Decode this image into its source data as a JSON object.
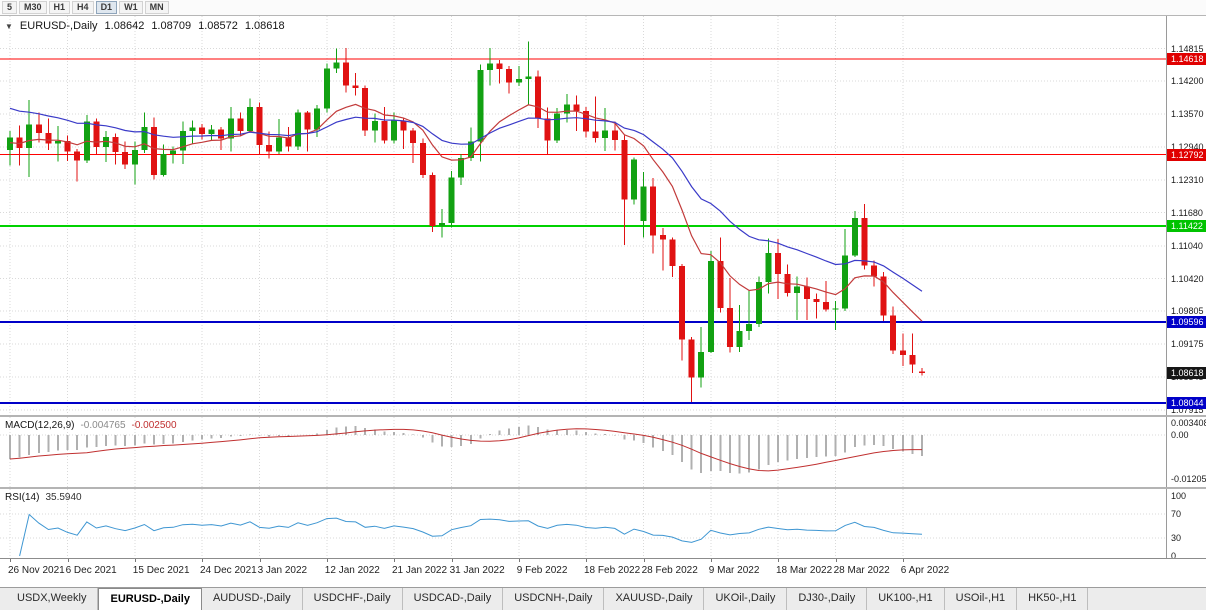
{
  "toolbar": {
    "timeframes": [
      {
        "label": "5",
        "active": false
      },
      {
        "label": "M30",
        "active": false
      },
      {
        "label": "H1",
        "active": false
      },
      {
        "label": "H4",
        "active": false
      },
      {
        "label": "D1",
        "active": true
      },
      {
        "label": "W1",
        "active": false
      },
      {
        "label": "MN",
        "active": false
      }
    ]
  },
  "chart": {
    "header": {
      "expander": "▼",
      "symbol": "EURUSD-,Daily",
      "open": "1.08642",
      "high": "1.08709",
      "low": "1.08572",
      "close": "1.08618"
    },
    "price_axis": {
      "ticks": [
        {
          "label": "1.14815",
          "price": 1.14815
        },
        {
          "label": "1.14200",
          "price": 1.142
        },
        {
          "label": "1.13570",
          "price": 1.1357
        },
        {
          "label": "1.12940",
          "price": 1.1294
        },
        {
          "label": "1.12310",
          "price": 1.1231
        },
        {
          "label": "1.11680",
          "price": 1.1168
        },
        {
          "label": "1.11040",
          "price": 1.1104
        },
        {
          "label": "1.10420",
          "price": 1.1042
        },
        {
          "label": "1.09805",
          "price": 1.09805
        },
        {
          "label": "1.09175",
          "price": 1.09175
        },
        {
          "label": "1.08545",
          "price": 1.08545
        },
        {
          "label": "1.07915",
          "price": 1.07915
        }
      ],
      "badges": [
        {
          "label": "1.14618",
          "price": 1.14618,
          "color": "#e00000",
          "name": "level-1-14618"
        },
        {
          "label": "1.12792",
          "price": 1.12792,
          "color": "#e00000",
          "name": "level-1-12792"
        },
        {
          "label": "1.11422",
          "price": 1.11422,
          "color": "#00c300",
          "name": "level-1-11422"
        },
        {
          "label": "1.09596",
          "price": 1.09596,
          "color": "#0000c8",
          "name": "level-1-09596"
        },
        {
          "label": "1.08618",
          "price": 1.08618,
          "color": "#161616",
          "name": "current-price"
        },
        {
          "label": "1.08044",
          "price": 1.08044,
          "color": "#0000c8",
          "name": "level-1-08044"
        }
      ]
    }
  },
  "macd": {
    "title": "MACD(12,26,9)",
    "value_main": "-0.004765",
    "value_signal": "-0.002500"
  },
  "rsi": {
    "title": "RSI(14)",
    "value": "35.5940"
  },
  "date_axis": {
    "labels": [
      {
        "text": "26 Nov 2021",
        "index": 0
      },
      {
        "text": "6 Dec 2021",
        "index": 6
      },
      {
        "text": "15 Dec 2021",
        "index": 13
      },
      {
        "text": "24 Dec 2021",
        "index": 20
      },
      {
        "text": "3 Jan 2022",
        "index": 26
      },
      {
        "text": "12 Jan 2022",
        "index": 33
      },
      {
        "text": "21 Jan 2022",
        "index": 40
      },
      {
        "text": "31 Jan 2022",
        "index": 46
      },
      {
        "text": "9 Feb 2022",
        "index": 53
      },
      {
        "text": "18 Feb 2022",
        "index": 60
      },
      {
        "text": "28 Feb 2022",
        "index": 66
      },
      {
        "text": "9 Mar 2022",
        "index": 73
      },
      {
        "text": "18 Mar 2022",
        "index": 80
      },
      {
        "text": "28 Mar 2022",
        "index": 86
      },
      {
        "text": "6 Apr 2022",
        "index": 93
      }
    ]
  },
  "tabs": [
    {
      "label": "USDX,Weekly",
      "active": false
    },
    {
      "label": "EURUSD-,Daily",
      "active": true
    },
    {
      "label": "AUDUSD-,Daily",
      "active": false
    },
    {
      "label": "USDCHF-,Daily",
      "active": false
    },
    {
      "label": "USDCAD-,Daily",
      "active": false
    },
    {
      "label": "USDCNH-,Daily",
      "active": false
    },
    {
      "label": "XAUUSD-,Daily",
      "active": false
    },
    {
      "label": "UKOil-,Daily",
      "active": false
    },
    {
      "label": "DJ30-,Daily",
      "active": false
    },
    {
      "label": "UK100-,H1",
      "active": false
    },
    {
      "label": "USOil-,H1",
      "active": false
    },
    {
      "label": "HK50-,H1",
      "active": false
    }
  ],
  "chart_data": {
    "type": "candlestick",
    "symbol": "EURUSD-",
    "timeframe": "Daily",
    "current_ohlc": {
      "open": 1.08642,
      "high": 1.08709,
      "low": 1.08572,
      "close": 1.08618
    },
    "y_axis": {
      "min": 1.077,
      "max": 1.15
    },
    "colors": {
      "up": "#12a112",
      "down": "#e01212"
    },
    "hlines": [
      {
        "price": 1.14618,
        "color": "#ff0000",
        "width": 1
      },
      {
        "price": 1.12792,
        "color": "#ff0000",
        "width": 1
      },
      {
        "price": 1.11422,
        "color": "#00d200",
        "width": 2
      },
      {
        "price": 1.09596,
        "color": "#0000c8",
        "width": 2
      },
      {
        "price": 1.08044,
        "color": "#0000c8",
        "width": 2
      }
    ],
    "overlays": [
      {
        "name": "ma-fast",
        "type": "ema",
        "period": 12,
        "color": "#c23b3b",
        "seed": 1.13
      },
      {
        "name": "ma-slow",
        "type": "ema",
        "period": 26,
        "color": "#3a3ac8",
        "seed": 1.1372
      }
    ],
    "macd": {
      "fast": 12,
      "slow": 26,
      "signal": 9,
      "hist_color": "#b0b0b0",
      "signal_color": "#c03030",
      "current_main": -0.004765,
      "current_signal": -0.0025,
      "axis": [
        {
          "label": "0.003408",
          "value": 0.003408
        },
        {
          "label": "0.00",
          "value": 0
        },
        {
          "label": "-0.01205",
          "value": -0.01205
        }
      ]
    },
    "rsi": {
      "period": 14,
      "color": "#3e96d2",
      "levels": [
        70,
        30
      ],
      "current": 35.594,
      "axis": [
        {
          "label": "100",
          "value": 100
        },
        {
          "label": "70",
          "value": 70
        },
        {
          "label": "30",
          "value": 30
        },
        {
          "label": "0",
          "value": 0
        }
      ]
    },
    "candles": [
      [
        "2021.11.26",
        1.1288,
        1.1324,
        1.1258,
        1.1312
      ],
      [
        "2021.11.29",
        1.1312,
        1.1335,
        1.1258,
        1.1292
      ],
      [
        "2021.11.30",
        1.1292,
        1.1383,
        1.1236,
        1.1337
      ],
      [
        "2021.12.01",
        1.1337,
        1.136,
        1.1302,
        1.132
      ],
      [
        "2021.12.02",
        1.132,
        1.1348,
        1.1288,
        1.13
      ],
      [
        "2021.12.03",
        1.13,
        1.1334,
        1.1266,
        1.1305
      ],
      [
        "2021.12.06",
        1.1305,
        1.1316,
        1.1267,
        1.1285
      ],
      [
        "2021.12.07",
        1.1285,
        1.129,
        1.1228,
        1.1268
      ],
      [
        "2021.12.08",
        1.1268,
        1.1355,
        1.1263,
        1.1342
      ],
      [
        "2021.12.09",
        1.1342,
        1.1348,
        1.128,
        1.1294
      ],
      [
        "2021.12.10",
        1.1294,
        1.1324,
        1.1265,
        1.1313
      ],
      [
        "2021.12.13",
        1.1313,
        1.1319,
        1.126,
        1.1284
      ],
      [
        "2021.12.14",
        1.1284,
        1.1304,
        1.1252,
        1.126
      ],
      [
        "2021.12.15",
        1.126,
        1.1304,
        1.1222,
        1.1288
      ],
      [
        "2021.12.16",
        1.1288,
        1.136,
        1.1282,
        1.1332
      ],
      [
        "2021.12.17",
        1.1332,
        1.135,
        1.1232,
        1.124
      ],
      [
        "2021.12.20",
        1.124,
        1.1298,
        1.1237,
        1.128
      ],
      [
        "2021.12.21",
        1.128,
        1.1295,
        1.1262,
        1.1287
      ],
      [
        "2021.12.22",
        1.1287,
        1.1342,
        1.1261,
        1.1324
      ],
      [
        "2021.12.23",
        1.1324,
        1.1344,
        1.13,
        1.1331
      ],
      [
        "2021.12.24",
        1.1331,
        1.1338,
        1.1308,
        1.1318
      ],
      [
        "2021.12.27",
        1.1318,
        1.1336,
        1.1305,
        1.1327
      ],
      [
        "2021.12.28",
        1.1327,
        1.1332,
        1.1288,
        1.131
      ],
      [
        "2021.12.29",
        1.131,
        1.137,
        1.1285,
        1.1348
      ],
      [
        "2021.12.30",
        1.1348,
        1.136,
        1.1315,
        1.1324
      ],
      [
        "2021.12.31",
        1.1324,
        1.1386,
        1.1321,
        1.137
      ],
      [
        "2022.01.03",
        1.137,
        1.1379,
        1.1279,
        1.1297
      ],
      [
        "2022.01.04",
        1.1297,
        1.1323,
        1.1272,
        1.1285
      ],
      [
        "2022.01.05",
        1.1285,
        1.1347,
        1.128,
        1.1312
      ],
      [
        "2022.01.06",
        1.1312,
        1.1332,
        1.1285,
        1.1295
      ],
      [
        "2022.01.07",
        1.1295,
        1.1365,
        1.1288,
        1.136
      ],
      [
        "2022.01.10",
        1.136,
        1.1362,
        1.1285,
        1.1327
      ],
      [
        "2022.01.11",
        1.1327,
        1.1374,
        1.1313,
        1.1367
      ],
      [
        "2022.01.12",
        1.1367,
        1.1453,
        1.136,
        1.1444
      ],
      [
        "2022.01.13",
        1.1444,
        1.1482,
        1.1435,
        1.1455
      ],
      [
        "2022.01.14",
        1.1455,
        1.1483,
        1.1398,
        1.1411
      ],
      [
        "2022.01.17",
        1.1411,
        1.1435,
        1.1392,
        1.1406
      ],
      [
        "2022.01.18",
        1.1406,
        1.1411,
        1.1315,
        1.1325
      ],
      [
        "2022.01.19",
        1.1325,
        1.1358,
        1.1302,
        1.1343
      ],
      [
        "2022.01.20",
        1.1343,
        1.137,
        1.13,
        1.1306
      ],
      [
        "2022.01.21",
        1.1306,
        1.136,
        1.13,
        1.1344
      ],
      [
        "2022.01.24",
        1.1344,
        1.1349,
        1.129,
        1.1325
      ],
      [
        "2022.01.25",
        1.1325,
        1.133,
        1.1263,
        1.1301
      ],
      [
        "2022.01.26",
        1.1301,
        1.131,
        1.1234,
        1.124
      ],
      [
        "2022.01.27",
        1.124,
        1.1245,
        1.1131,
        1.1143
      ],
      [
        "2022.01.28",
        1.1143,
        1.1175,
        1.1121,
        1.1148
      ],
      [
        "2022.01.31",
        1.1148,
        1.1248,
        1.114,
        1.1235
      ],
      [
        "2022.02.01",
        1.1235,
        1.128,
        1.1221,
        1.1273
      ],
      [
        "2022.02.02",
        1.1273,
        1.1331,
        1.1267,
        1.1304
      ],
      [
        "2022.02.03",
        1.1304,
        1.1451,
        1.1266,
        1.1441
      ],
      [
        "2022.02.04",
        1.1441,
        1.1483,
        1.1411,
        1.1453
      ],
      [
        "2022.02.07",
        1.1453,
        1.146,
        1.1415,
        1.1443
      ],
      [
        "2022.02.08",
        1.1443,
        1.1448,
        1.1396,
        1.1417
      ],
      [
        "2022.02.09",
        1.1417,
        1.1448,
        1.141,
        1.1424
      ],
      [
        "2022.02.10",
        1.1424,
        1.1495,
        1.1374,
        1.1428
      ],
      [
        "2022.02.11",
        1.1428,
        1.144,
        1.133,
        1.1348
      ],
      [
        "2022.02.14",
        1.1348,
        1.1369,
        1.128,
        1.1306
      ],
      [
        "2022.02.15",
        1.1306,
        1.1368,
        1.1301,
        1.1358
      ],
      [
        "2022.02.16",
        1.1358,
        1.1395,
        1.134,
        1.1375
      ],
      [
        "2022.02.17",
        1.1375,
        1.1392,
        1.1324,
        1.1362
      ],
      [
        "2022.02.18",
        1.1362,
        1.137,
        1.1312,
        1.1323
      ],
      [
        "2022.02.21",
        1.1323,
        1.139,
        1.1302,
        1.1311
      ],
      [
        "2022.02.22",
        1.1311,
        1.1368,
        1.1286,
        1.1325
      ],
      [
        "2022.02.23",
        1.1325,
        1.1342,
        1.1287,
        1.1307
      ],
      [
        "2022.02.24",
        1.1307,
        1.1316,
        1.1106,
        1.1193
      ],
      [
        "2022.02.25",
        1.1193,
        1.1274,
        1.1184,
        1.127
      ],
      [
        "2022.02.28",
        1.1152,
        1.1246,
        1.1121,
        1.1218
      ],
      [
        "2022.03.01",
        1.1218,
        1.1234,
        1.109,
        1.1125
      ],
      [
        "2022.03.02",
        1.1125,
        1.1139,
        1.1058,
        1.1117
      ],
      [
        "2022.03.03",
        1.1117,
        1.1121,
        1.1045,
        1.1066
      ],
      [
        "2022.03.04",
        1.1066,
        1.107,
        1.0886,
        1.0926
      ],
      [
        "2022.03.07",
        1.0926,
        1.0931,
        1.0806,
        1.0853
      ],
      [
        "2022.03.08",
        1.0853,
        1.095,
        1.0834,
        1.0902
      ],
      [
        "2022.03.09",
        1.0902,
        1.1095,
        1.09,
        1.1076
      ],
      [
        "2022.03.10",
        1.1076,
        1.1121,
        1.0977,
        1.0986
      ],
      [
        "2022.03.11",
        1.0986,
        1.1043,
        1.0901,
        1.0911
      ],
      [
        "2022.03.14",
        1.0911,
        1.0992,
        1.0902,
        1.0942
      ],
      [
        "2022.03.15",
        1.0942,
        1.102,
        1.0925,
        1.0955
      ],
      [
        "2022.03.16",
        1.0955,
        1.1046,
        1.095,
        1.1036
      ],
      [
        "2022.03.17",
        1.1036,
        1.1119,
        1.1014,
        1.1091
      ],
      [
        "2022.03.18",
        1.1091,
        1.1118,
        1.1003,
        1.1051
      ],
      [
        "2022.03.21",
        1.1051,
        1.1069,
        1.1008,
        1.1015
      ],
      [
        "2022.03.22",
        1.1015,
        1.1046,
        1.0963,
        1.1027
      ],
      [
        "2022.03.23",
        1.1027,
        1.1044,
        1.0963,
        1.1003
      ],
      [
        "2022.03.24",
        1.1003,
        1.1014,
        1.0966,
        1.0997
      ],
      [
        "2022.03.25",
        1.0997,
        1.1038,
        1.0979,
        1.0983
      ],
      [
        "2022.03.28",
        1.0983,
        1.0999,
        1.0944,
        1.0985
      ],
      [
        "2022.03.29",
        1.0985,
        1.1137,
        1.098,
        1.1086
      ],
      [
        "2022.03.30",
        1.1086,
        1.1171,
        1.1083,
        1.1158
      ],
      [
        "2022.03.31",
        1.1158,
        1.1185,
        1.106,
        1.1067
      ],
      [
        "2022.04.01",
        1.1067,
        1.1077,
        1.1027,
        1.1046
      ],
      [
        "2022.04.04",
        1.1046,
        1.1055,
        1.0961,
        1.0972
      ],
      [
        "2022.04.05",
        1.0972,
        1.0989,
        1.0898,
        1.0905
      ],
      [
        "2022.04.06",
        1.0905,
        1.0937,
        1.0875,
        1.0896
      ],
      [
        "2022.04.07",
        1.0896,
        1.0937,
        1.0862,
        1.0878
      ],
      [
        "2022.04.08",
        1.08642,
        1.08709,
        1.08572,
        1.08618
      ]
    ]
  }
}
